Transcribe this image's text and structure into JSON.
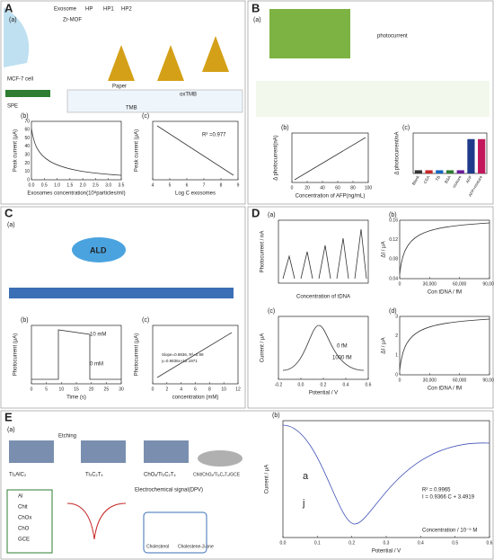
{
  "A": {
    "letter": "A",
    "a": {
      "tag": "(a)",
      "legend": [
        "Exosome",
        "HP",
        "HP1",
        "HP2",
        "Zr-MOF"
      ],
      "cell": "MCF-7 cell",
      "paper": "Paper",
      "spe": "SPE",
      "tmb": "TMB",
      "oxtmb": "oxTMB"
    },
    "b": {
      "tag": "(b)",
      "ylabel": "Peak current (μA)",
      "xlabel": "Exosomes concentration(10⁸particles/ml)",
      "xticks": [
        "0.0",
        "0.5",
        "1.0",
        "1.5",
        "2.0",
        "2.5",
        "3.0",
        "3.5"
      ],
      "yticks": [
        "0",
        "10",
        "20",
        "30",
        "40",
        "50",
        "60",
        "70"
      ]
    },
    "c": {
      "tag": "(c)",
      "ylabel": "Peak current (μA)",
      "xlabel": "Log C exosomes",
      "xticks": [
        "4",
        "5",
        "6",
        "7",
        "8",
        "9"
      ],
      "note": "R² =0.977"
    }
  },
  "B": {
    "letter": "B",
    "a": {
      "tag": "(a)",
      "photocurrent": "photocurrent"
    },
    "b": {
      "tag": "(b)",
      "ylabel": "Δ photocurrent(nA)",
      "xlabel": "Concentration of AFP(ng/mL)",
      "xticks": [
        "0",
        "20",
        "40",
        "60",
        "80",
        "100"
      ]
    },
    "c": {
      "tag": "(c)",
      "ylabel": "Δ photocurrent/nA",
      "categories": [
        "Blank",
        "CEA",
        "TB",
        "BSA",
        "mixture",
        "AFP",
        "AFP+mixture"
      ]
    }
  },
  "C": {
    "letter": "C",
    "a": {
      "tag": "(a)",
      "ald": "ALD"
    },
    "b": {
      "tag": "(b)",
      "ylabel": "Photocurrent (μA)",
      "xlabel": "Time (s)",
      "xticks": [
        "0",
        "5",
        "10",
        "15",
        "20",
        "25",
        "30"
      ],
      "high": "10 mM",
      "low": "0 mM"
    },
    "c": {
      "tag": "(c)",
      "ylabel": "Photocurrent (μA)",
      "xlabel": "concentration (mM)",
      "xticks": [
        "0",
        "2",
        "4",
        "6",
        "8",
        "10",
        "12"
      ],
      "note": "Slope=0.9836, R²=0.99",
      "eq": "y=0.9836x+12.1971"
    }
  },
  "D": {
    "letter": "D",
    "a": {
      "tag": "(a)",
      "ylabel": "Photocurrent / nA",
      "xlabel": "Concentration of tDNA"
    },
    "b": {
      "tag": "(b)",
      "ylabel": "ΔI / μA",
      "xlabel": "Con tDNA / fM",
      "xticks": [
        "0",
        "30,000",
        "60,000",
        "90,000"
      ],
      "yticks": [
        "0.04",
        "0.08",
        "0.12",
        "0.16"
      ]
    },
    "c": {
      "tag": "(c)",
      "ylabel": "Current / μA",
      "xlabel": "Potential / V",
      "xticks": [
        "-0.2",
        "0.0",
        "0.2",
        "0.4",
        "0.6"
      ],
      "top": "0 fM",
      "bottom": "1000 fM"
    },
    "d": {
      "tag": "(d)",
      "ylabel": "ΔI / μA",
      "xlabel": "Con tDNA / fM",
      "xticks": [
        "0",
        "30,000",
        "60,000",
        "90,000"
      ],
      "yticks": [
        "0",
        "1",
        "2",
        "3"
      ]
    }
  },
  "E": {
    "letter": "E",
    "a": {
      "tag": "(a)",
      "s1": "Ti₃AlC₂",
      "etch": "Etching",
      "s2": "Ti₃C₂Tₓ",
      "s3": "ChOₓ/Ti₃C₂Tₓ",
      "s4": "Chit/ChOₓ/Ti₃C₂Tₓ/GCE",
      "signal": "Electrochemical signal(DPV)",
      "legend": [
        "Al",
        "Chit",
        "ChOx",
        "ChO",
        "GCE"
      ],
      "sub": "Cholesterol",
      "prod": "Cholestene-3-one"
    },
    "b": {
      "tag": "(b)",
      "ylabel": "Current / μA",
      "xlabel": "Potential / V",
      "xticks": [
        "0.0",
        "0.1",
        "0.2",
        "0.3",
        "0.4",
        "0.5",
        "0.6"
      ],
      "first": "a",
      "last": "j",
      "r2": "R² = 0.9965",
      "eq": "I = 0.9366 C + 3.4919",
      "inset_x": "Concentration / 10⁻⁵ M"
    }
  }
}
